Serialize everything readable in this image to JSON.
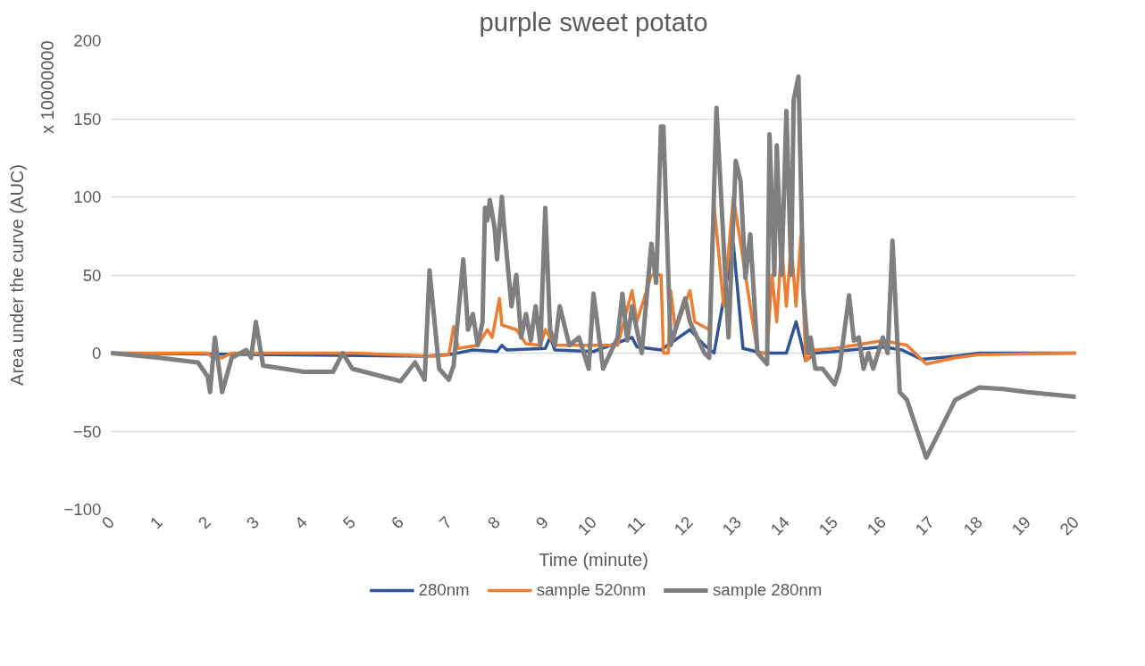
{
  "chart_data": {
    "type": "line",
    "title": "purple sweet potato",
    "xlabel": "Time (minute)",
    "ylabel": "Area under the curve (AUC)",
    "annotations": [
      "x 10000000"
    ],
    "xlim": [
      0,
      20
    ],
    "xticks": [
      0,
      1,
      2,
      3,
      4,
      5,
      6,
      7,
      8,
      9,
      10,
      11,
      12,
      13,
      14,
      15,
      16,
      17,
      18,
      19,
      20
    ],
    "ylim": [
      -100,
      200
    ],
    "yticks": [
      -100,
      -50,
      0,
      50,
      100,
      150,
      200
    ],
    "grid": "y",
    "legend": "bottom",
    "line_style": "solid",
    "marker": "none",
    "series": [
      {
        "name": "280nm",
        "color": "#2f5597",
        "x": [
          0,
          6.5,
          7.0,
          7.5,
          8.0,
          8.1,
          8.2,
          9.0,
          9.1,
          9.2,
          10,
          10.8,
          10.9,
          11.4,
          12.0,
          12.3,
          12.5,
          12.9,
          13.1,
          13.5,
          14.0,
          14.2,
          14.4,
          14.6,
          15,
          16,
          16.4,
          16.8,
          17.5,
          18,
          20
        ],
        "values": [
          0,
          -2,
          -1,
          2,
          1,
          5,
          2,
          3,
          10,
          2,
          1,
          10,
          4,
          2,
          15,
          5,
          0,
          70,
          3,
          0,
          0,
          20,
          -5,
          0,
          1,
          4,
          2,
          -4,
          -2,
          0,
          0
        ]
      },
      {
        "name": "sample 520nm",
        "color": "#ed7d31",
        "x": [
          0,
          2,
          2.1,
          2.3,
          2.5,
          5,
          6.7,
          7.0,
          7.1,
          7.2,
          7.6,
          7.8,
          7.9,
          8.05,
          8.1,
          8.4,
          8.6,
          8.9,
          9.0,
          9.2,
          10.0,
          10.5,
          10.8,
          10.9,
          11.2,
          11.4,
          11.45,
          11.55,
          11.6,
          11.7,
          12.0,
          12.1,
          12.4,
          12.5,
          12.7,
          12.9,
          13.2,
          13.4,
          13.6,
          13.7,
          13.8,
          13.9,
          14.0,
          14.1,
          14.2,
          14.3,
          14.4,
          14.6,
          15.0,
          16.0,
          16.5,
          16.9,
          17.5,
          18,
          20
        ],
        "values": [
          0,
          0,
          -3,
          -3,
          0,
          0,
          -2,
          -1,
          17,
          3,
          5,
          15,
          10,
          35,
          18,
          15,
          6,
          5,
          15,
          5,
          5,
          5,
          40,
          20,
          50,
          50,
          0,
          0,
          40,
          15,
          40,
          20,
          15,
          95,
          30,
          100,
          40,
          0,
          0,
          50,
          20,
          70,
          30,
          70,
          30,
          75,
          -5,
          2,
          3,
          8,
          5,
          -7,
          -3,
          -1,
          0
        ]
      },
      {
        "name": "sample 280nm",
        "color": "#7f7f7f",
        "x": [
          0,
          1,
          1.8,
          2.0,
          2.05,
          2.15,
          2.3,
          2.5,
          2.8,
          2.9,
          3.0,
          3.15,
          4,
          4.6,
          4.8,
          5.0,
          6.0,
          6.3,
          6.5,
          6.6,
          6.8,
          7.0,
          7.1,
          7.3,
          7.4,
          7.5,
          7.6,
          7.7,
          7.75,
          7.8,
          7.85,
          7.95,
          8.0,
          8.1,
          8.15,
          8.3,
          8.4,
          8.5,
          8.6,
          8.7,
          8.8,
          8.9,
          9.0,
          9.1,
          9.2,
          9.3,
          9.5,
          9.7,
          9.9,
          10.0,
          10.2,
          10.5,
          10.6,
          10.7,
          10.8,
          11.0,
          11.2,
          11.3,
          11.4,
          11.45,
          11.6,
          11.9,
          12.0,
          12.3,
          12.4,
          12.55,
          12.8,
          12.95,
          13.05,
          13.15,
          13.25,
          13.4,
          13.6,
          13.65,
          13.75,
          13.8,
          13.9,
          14.0,
          14.1,
          14.15,
          14.25,
          14.35,
          14.45,
          14.5,
          14.6,
          14.75,
          15.0,
          15.1,
          15.3,
          15.4,
          15.5,
          15.6,
          15.7,
          15.8,
          16.0,
          16.1,
          16.2,
          16.35,
          16.5,
          16.9,
          17.5,
          18.0,
          18.5,
          19.0,
          20.0
        ],
        "values": [
          0,
          -3,
          -6,
          -15,
          -25,
          10,
          -25,
          -3,
          2,
          -3,
          20,
          -8,
          -12,
          -12,
          0,
          -10,
          -18,
          -6,
          -17,
          53,
          -10,
          -17,
          -8,
          60,
          15,
          25,
          5,
          20,
          93,
          85,
          98,
          80,
          60,
          100,
          80,
          30,
          50,
          10,
          25,
          8,
          30,
          5,
          93,
          15,
          5,
          30,
          5,
          10,
          -10,
          38,
          -10,
          10,
          38,
          8,
          30,
          0,
          70,
          45,
          145,
          145,
          5,
          35,
          20,
          0,
          -3,
          157,
          10,
          123,
          110,
          48,
          76,
          0,
          -7,
          140,
          50,
          133,
          50,
          155,
          50,
          162,
          177,
          40,
          0,
          10,
          -10,
          -10,
          -20,
          -10,
          37,
          8,
          10,
          -10,
          0,
          -10,
          10,
          0,
          72,
          -25,
          -30,
          -67,
          -30,
          -22,
          -23,
          -25,
          -28
        ]
      }
    ]
  }
}
